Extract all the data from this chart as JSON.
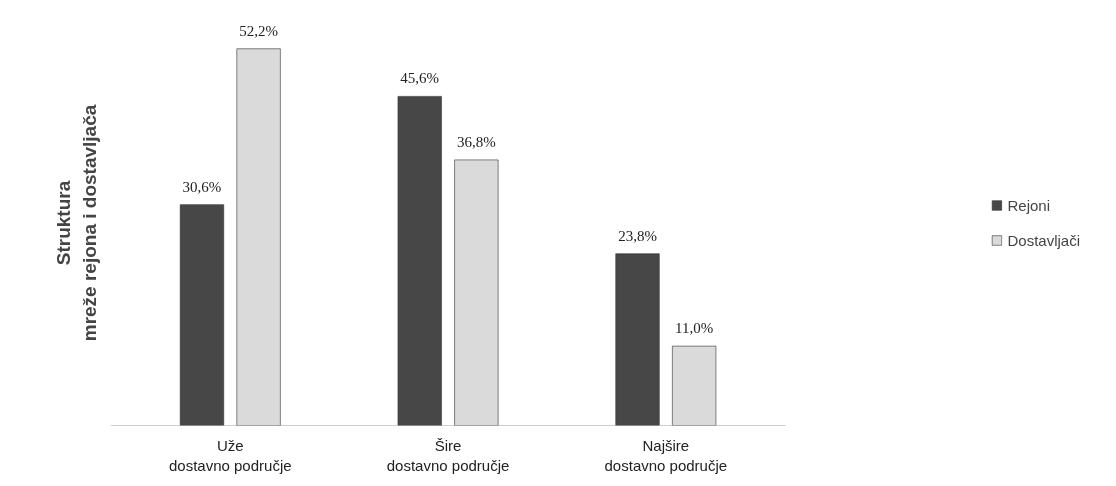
{
  "chart_data": {
    "type": "bar",
    "ylabel": "Struktura\nmreže rejona i dostavljača",
    "categories": [
      "Uže\ndostavno područje",
      "Šire\ndostavno područje",
      "Najšire\ndostavno područje"
    ],
    "series": [
      {
        "name": "Rejoni",
        "color": "#474747",
        "values": [
          30.6,
          45.6,
          23.8
        ],
        "value_labels": [
          "30,6%",
          "45,6%",
          "23,8%"
        ]
      },
      {
        "name": "Dostavljači",
        "color": "#dadada",
        "values": [
          52.2,
          36.8,
          11.0
        ],
        "value_labels": [
          "52,2%",
          "36,8%",
          "11,0%"
        ]
      }
    ],
    "tick_labels": "x",
    "grid": false,
    "legend": "right"
  }
}
